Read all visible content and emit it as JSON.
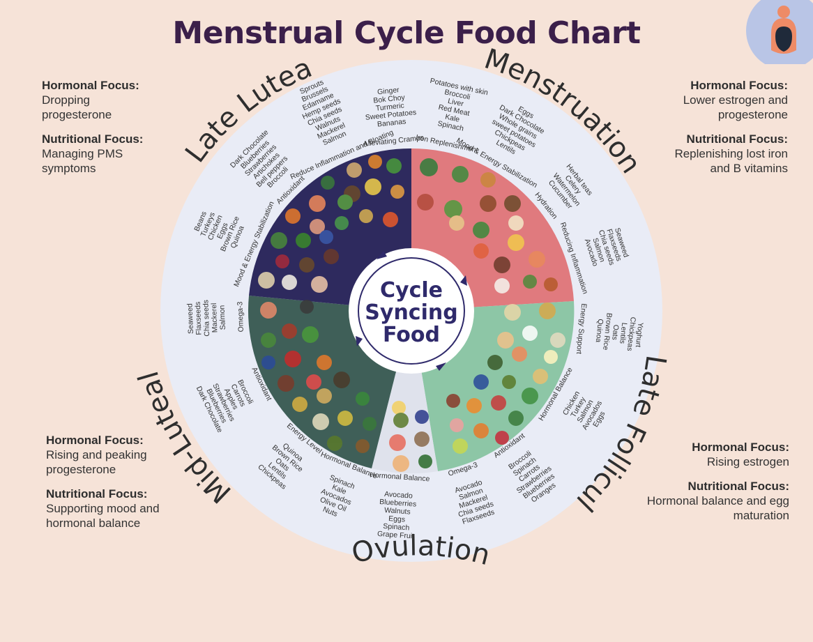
{
  "title": "Menstrual Cycle Food Chart",
  "center": {
    "line1": "Cycle",
    "line2": "Syncing",
    "line3": "Food"
  },
  "phases": {
    "menstruation": "Menstruation",
    "late_follicular": "Late Follicular",
    "ovulation": "Ovulation",
    "mid_luteal": "Mid-Luteal",
    "late_luteal": "Late Luteal"
  },
  "focus": {
    "menstruation": {
      "h1": "Hormonal Focus:",
      "b1": "Lower estrogen and progesterone",
      "h2": "Nutritional Focus:",
      "b2": "Replenishing lost iron and B vitamins"
    },
    "late_follicular": {
      "h1": "Hormonal Focus:",
      "b1": "Rising estrogen",
      "h2": "Nutritional Focus:",
      "b2": "Hormonal balance and egg maturation"
    },
    "mid_luteal": {
      "h1": "Hormonal Focus:",
      "b1": "Rising and peaking progesterone",
      "h2": "Nutritional Focus:",
      "b2": "Supporting mood and hormonal balance"
    },
    "late_luteal": {
      "h1": "Hormonal Focus:",
      "b1": "Dropping progesterone",
      "h2": "Nutritional Focus:",
      "b2": "Managing PMS symptoms"
    }
  },
  "groups": [
    {
      "cat": "Iron Replenishment",
      "foods": [
        "Spinach",
        "Kale",
        "Red Meat",
        "Liver",
        "Broccoli",
        "Potatoes with skin"
      ]
    },
    {
      "cat": "Mood & Energy Stabilization",
      "foods": [
        "Lentils",
        "Chickpeas",
        "sweet potatoes",
        "Whole grains",
        "Dark Chocolate",
        "Eggs"
      ]
    },
    {
      "cat": "Hydration",
      "foods": [
        "Cucumber",
        "Watermelon",
        "Celery",
        "Herbal teas"
      ]
    },
    {
      "cat": "Reducing Inflammation",
      "foods": [
        "Avocado",
        "Salmon",
        "Chia seeds",
        "Flaxseeds",
        "Seaweed"
      ]
    },
    {
      "cat": "Energy Support",
      "foods": [
        "Quinoa",
        "Brown Rice",
        "Oats",
        "Lentils",
        "Chickpeas",
        "Yoghurt"
      ]
    },
    {
      "cat": "Hormonal Balance",
      "foods": [
        "Chicken",
        "Turkey",
        "Salmon",
        "Avocados",
        "Eggs"
      ]
    },
    {
      "cat": "Antioxidant",
      "foods": [
        "Broccoli",
        "Spinach",
        "Carrots",
        "Strawberries",
        "Blueberries",
        "Oranges"
      ]
    },
    {
      "cat": "Omega-3",
      "foods": [
        "Avocado",
        "Salmon",
        "Mackerel",
        "Chia seeds",
        "Flaxseeds"
      ]
    },
    {
      "cat": "Hormonal Balance",
      "foods": [
        "Avocado",
        "Blueberries",
        "Walnuts",
        "Eggs",
        "Spinach",
        "Grape Fruit"
      ]
    },
    {
      "cat": "Hormonal Balance",
      "foods": [
        "Spinach",
        "Kale",
        "Avocados",
        "Olive Oil",
        "Nuts"
      ]
    },
    {
      "cat": "Energy Level",
      "foods": [
        "Quinoa",
        "Brown Rice",
        "Oats",
        "Lentils",
        "Chickpeas"
      ]
    },
    {
      "cat": "Antioxidant",
      "foods": [
        "Broccoli",
        "Carrots",
        "Apples",
        "Strawberries",
        "Blueberries",
        "Dark Chocolate"
      ]
    },
    {
      "cat": "Omega-3",
      "foods": [
        "Salmon",
        "Mackerel",
        "Chia seeds",
        "Flaxseeds",
        "Seaweed"
      ]
    },
    {
      "cat": "Mood & Energy Stabilization",
      "foods": [
        "Quinoa",
        "Brown Rice",
        "Eggs",
        "Chicken",
        "Turkeys",
        "Beans"
      ]
    },
    {
      "cat": "Antioxidant",
      "foods": [
        "Broccoli",
        "Bell peppers",
        "Artichokes",
        "Strawberries",
        "Blueberries",
        "Dark Chocolate"
      ]
    },
    {
      "cat": "Reduce Inflammation and Bloating",
      "foods": [
        "Salmon",
        "Mackerel",
        "Walnuts",
        "Chia seeds",
        "Hemp seeds",
        "Edamame",
        "Brussels",
        "Sprouts"
      ]
    },
    {
      "cat": "Alleviating Cramps",
      "foods": [
        "Bananas",
        "Sweet Potatoes",
        "Turmeric",
        "Bok Choy",
        "Ginger"
      ]
    }
  ],
  "colors": {
    "background": "#f6e3d8",
    "outer_ring": "#e9ecf6",
    "menstruation": "#e07a7e",
    "late_follicular": "#8dc6a6",
    "ovulation": "#dfe2ec",
    "mid_luteal": "#3f5f58",
    "late_luteal": "#2e2a5e",
    "title": "#3b1f4a"
  },
  "icons": [
    "avatar-icon",
    "cycle-arrow-icon"
  ]
}
